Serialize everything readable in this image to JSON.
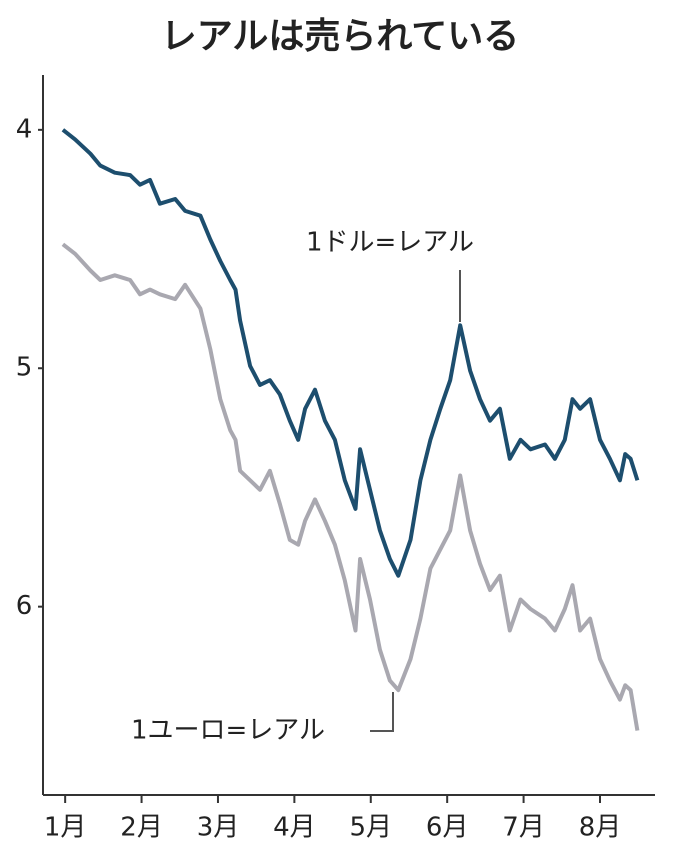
{
  "chart_data": {
    "type": "line",
    "title": "レアルは売られている",
    "y_inverted": true,
    "xlim": [
      0.71,
      8.72
    ],
    "ylim": [
      3.77,
      6.79
    ],
    "xticks": [
      {
        "value": 1,
        "label": "1月"
      },
      {
        "value": 2,
        "label": "2月"
      },
      {
        "value": 3,
        "label": "3月"
      },
      {
        "value": 4,
        "label": "4月"
      },
      {
        "value": 5,
        "label": "5月"
      },
      {
        "value": 6,
        "label": "6月"
      },
      {
        "value": 7,
        "label": "7月"
      },
      {
        "value": 8,
        "label": "8月"
      }
    ],
    "yticks": [
      4,
      5,
      6
    ],
    "x": [
      0.97,
      1.13,
      1.33,
      1.46,
      1.65,
      1.85,
      1.98,
      2.11,
      2.24,
      2.44,
      2.57,
      2.77,
      2.9,
      3.03,
      3.16,
      3.23,
      3.29,
      3.42,
      3.55,
      3.68,
      3.81,
      3.94,
      4.05,
      4.14,
      4.27,
      4.4,
      4.53,
      4.66,
      4.8,
      4.86,
      4.99,
      5.12,
      5.25,
      5.36,
      5.52,
      5.65,
      5.78,
      5.91,
      6.04,
      6.17,
      6.3,
      6.43,
      6.56,
      6.69,
      6.82,
      6.96,
      7.09,
      7.28,
      7.41,
      7.54,
      7.64,
      7.74,
      7.87,
      8.0,
      8.13,
      8.26,
      8.33,
      8.4,
      8.49
    ],
    "series": [
      {
        "name": "1ドル=レアル",
        "color": "#1d4e6e",
        "values": [
          4.0,
          4.04,
          4.1,
          4.15,
          4.18,
          4.19,
          4.23,
          4.21,
          4.31,
          4.29,
          4.34,
          4.36,
          4.46,
          4.55,
          4.63,
          4.67,
          4.8,
          4.99,
          5.07,
          5.05,
          5.11,
          5.22,
          5.3,
          5.17,
          5.09,
          5.22,
          5.3,
          5.47,
          5.59,
          5.34,
          5.51,
          5.68,
          5.8,
          5.87,
          5.72,
          5.47,
          5.3,
          5.17,
          5.05,
          4.82,
          5.01,
          5.13,
          5.22,
          5.17,
          5.38,
          5.3,
          5.34,
          5.32,
          5.38,
          5.3,
          5.13,
          5.17,
          5.13,
          5.3,
          5.38,
          5.47,
          5.36,
          5.38,
          5.47
        ]
      },
      {
        "name": "1ユーロ=レアル",
        "color": "#a9a8b0",
        "values": [
          4.48,
          4.52,
          4.59,
          4.63,
          4.61,
          4.63,
          4.69,
          4.67,
          4.69,
          4.71,
          4.65,
          4.75,
          4.92,
          5.13,
          5.26,
          5.3,
          5.43,
          5.47,
          5.51,
          5.43,
          5.57,
          5.72,
          5.74,
          5.64,
          5.55,
          5.64,
          5.74,
          5.89,
          6.1,
          5.8,
          5.97,
          6.18,
          6.31,
          6.35,
          6.22,
          6.05,
          5.84,
          5.76,
          5.68,
          5.45,
          5.68,
          5.82,
          5.93,
          5.87,
          6.1,
          5.97,
          6.01,
          6.05,
          6.1,
          6.01,
          5.91,
          6.1,
          6.05,
          6.22,
          6.31,
          6.39,
          6.33,
          6.35,
          6.52
        ]
      }
    ]
  }
}
